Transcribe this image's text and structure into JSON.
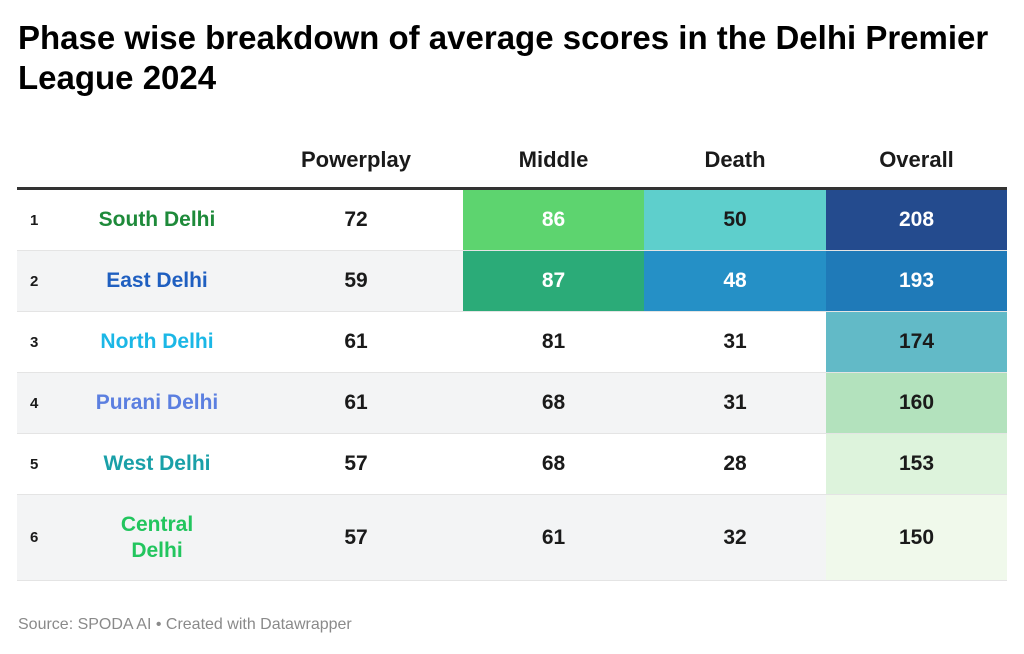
{
  "title": "Phase wise breakdown of average scores in the Delhi Premier League 2024",
  "source_text": "Source: SPODA AI • Created with Datawrapper",
  "chart_data": {
    "type": "table",
    "columns": [
      "",
      "",
      "Powerplay",
      "Middle",
      "Death",
      "Overall"
    ],
    "rows": [
      {
        "rank": "1",
        "team": "South Delhi",
        "team_color": "#1e8a3a",
        "powerplay": 72,
        "middle": 86,
        "death": 50,
        "overall": 208
      },
      {
        "rank": "2",
        "team": "East Delhi",
        "team_color": "#1f5fc0",
        "powerplay": 59,
        "middle": 87,
        "death": 48,
        "overall": 193
      },
      {
        "rank": "3",
        "team": "North Delhi",
        "team_color": "#1bb7e6",
        "powerplay": 61,
        "middle": 81,
        "death": 31,
        "overall": 174
      },
      {
        "rank": "4",
        "team": "Purani Delhi",
        "team_color": "#5b7fe0",
        "powerplay": 61,
        "middle": 68,
        "death": 31,
        "overall": 160
      },
      {
        "rank": "5",
        "team": "West Delhi",
        "team_color": "#1aa0a8",
        "powerplay": 57,
        "middle": 68,
        "death": 28,
        "overall": 153
      },
      {
        "rank": "6",
        "team": "Central Delhi",
        "team_color": "#22c55e",
        "powerplay": 57,
        "middle": 61,
        "death": 32,
        "overall": 150
      }
    ],
    "cell_colors": {
      "middle": [
        "#5dd46f",
        "#2bab78",
        null,
        null,
        null,
        null
      ],
      "death": [
        "#5ecfcc",
        "#2590c6",
        null,
        null,
        null,
        null
      ],
      "overall": [
        "#244b8e",
        "#1f7ab8",
        "#62bac7",
        "#b3e2bd",
        "#ddf3dc",
        "#f0f9eb"
      ]
    }
  }
}
